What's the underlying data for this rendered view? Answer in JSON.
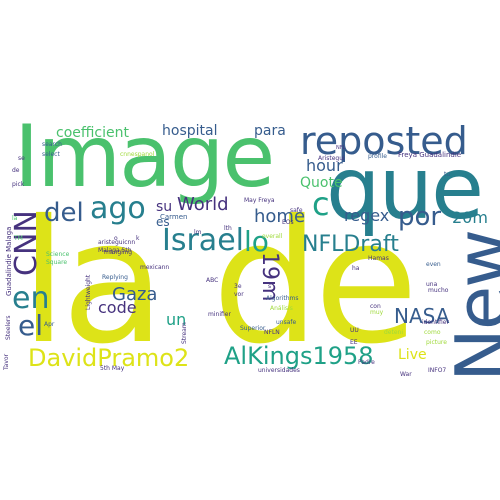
{
  "palette": {
    "yellow": "#dde318",
    "lime": "#9fda3a",
    "green": "#4ac16d",
    "teal": "#1fa187",
    "cyan": "#277f8e",
    "blue": "#365c8d",
    "indigo": "#46327e",
    "purple": "#440154"
  },
  "words": [
    {
      "id": "w-la",
      "text": "la"
    },
    {
      "id": "w-de",
      "text": "de"
    },
    {
      "id": "w-image",
      "text": "Image"
    },
    {
      "id": "w-que",
      "text": "que"
    },
    {
      "id": "w-new",
      "text": "New"
    },
    {
      "id": "w-reposted",
      "text": "reposted"
    },
    {
      "id": "w-cnn",
      "text": "CNN"
    },
    {
      "id": "w-en",
      "text": "en"
    },
    {
      "id": "w-el",
      "text": "el"
    },
    {
      "id": "w-del",
      "text": "del"
    },
    {
      "id": "w-ago",
      "text": "ago"
    },
    {
      "id": "w-israel",
      "text": "Israel"
    },
    {
      "id": "w-lo",
      "text": "lo"
    },
    {
      "id": "w-c",
      "text": "c"
    },
    {
      "id": "w-por",
      "text": "por"
    },
    {
      "id": "w-20m",
      "text": "20m"
    },
    {
      "id": "w-regex",
      "text": "regex"
    },
    {
      "id": "w-nfldraft",
      "text": "NFLDraft"
    },
    {
      "id": "w-19m",
      "text": "19m"
    },
    {
      "id": "w-world",
      "text": "World"
    },
    {
      "id": "w-home",
      "text": "home"
    },
    {
      "id": "w-hour",
      "text": "hour"
    },
    {
      "id": "w-quote",
      "text": "Quote"
    },
    {
      "id": "w-gaza",
      "text": "Gaza"
    },
    {
      "id": "w-nasa",
      "text": "NASA"
    },
    {
      "id": "w-code",
      "text": "code"
    },
    {
      "id": "w-un",
      "text": "un"
    },
    {
      "id": "w-davidpramo2",
      "text": "DavidPramo2"
    },
    {
      "id": "w-alkings1958",
      "text": "AlKings1958"
    },
    {
      "id": "w-live",
      "text": "Live"
    },
    {
      "id": "w-coefficient",
      "text": "coefficient"
    },
    {
      "id": "w-hospital",
      "text": "hospital"
    },
    {
      "id": "w-para",
      "text": "para"
    },
    {
      "id": "w-su",
      "text": "su"
    },
    {
      "id": "w-es",
      "text": "es"
    },
    {
      "id": "w-carmen",
      "text": "Carmen"
    },
    {
      "id": "w-guadalindie",
      "text": "Guadalindie Malaga"
    },
    {
      "id": "w-steelers",
      "text": "Steelers"
    },
    {
      "id": "w-search",
      "text": "search"
    },
    {
      "id": "w-select",
      "text": "select"
    },
    {
      "id": "w-se",
      "text": "se"
    },
    {
      "id": "w-freya",
      "text": "Freya Guadalindie"
    },
    {
      "id": "w-profile",
      "text": "profile"
    },
    {
      "id": "w-aristegui",
      "text": "Aristegui"
    },
    {
      "id": "w-nfl",
      "text": "NFL"
    },
    {
      "id": "w-tu",
      "text": "tu"
    },
    {
      "id": "w-algorithms",
      "text": "Algorithms"
    },
    {
      "id": "w-analisis",
      "text": "Análisis"
    },
    {
      "id": "w-unsafe",
      "text": "unsafe"
    },
    {
      "id": "w-identifier",
      "text": "identifier"
    },
    {
      "id": "w-minifier",
      "text": "minifier"
    },
    {
      "id": "w-superior",
      "text": "Superior"
    },
    {
      "id": "w-universidades",
      "text": "universidades"
    },
    {
      "id": "w-info7",
      "text": "INFO7"
    },
    {
      "id": "w-replying",
      "text": "Replying"
    },
    {
      "id": "w-mexicann",
      "text": "mexicann"
    },
    {
      "id": "w-mangling",
      "text": "mangling"
    },
    {
      "id": "w-aristeguicnn",
      "text": "aristeguicnn"
    },
    {
      "id": "w-malaga5th",
      "text": "Malaga 5th"
    },
    {
      "id": "w-5thmay",
      "text": "5th May"
    },
    {
      "id": "w-science",
      "text": "Science"
    },
    {
      "id": "w-square",
      "text": "Square"
    },
    {
      "id": "w-lightweight",
      "text": "Lightweight"
    },
    {
      "id": "w-stream",
      "text": "Stream"
    },
    {
      "id": "w-apr",
      "text": "Apr"
    },
    {
      "id": "w-mucho",
      "text": "mucho"
    },
    {
      "id": "w-con",
      "text": "con"
    },
    {
      "id": "w-even",
      "text": "even"
    },
    {
      "id": "w-hamas",
      "text": "Hamas"
    },
    {
      "id": "w-safe",
      "text": "safe"
    },
    {
      "id": "w-picture",
      "text": "picture"
    },
    {
      "id": "w-padre",
      "text": "Padre"
    },
    {
      "id": "w-war",
      "text": "War"
    },
    {
      "id": "w-una",
      "text": "una"
    },
    {
      "id": "w-pick",
      "text": "pick"
    },
    {
      "id": "w-nfln",
      "text": "NFLN"
    },
    {
      "id": "w-maypreya",
      "text": "May Freya"
    },
    {
      "id": "w-tavor",
      "text": "Tavor"
    },
    {
      "id": "w-cnnespanol",
      "text": "cnnespanol"
    },
    {
      "id": "w-deteni",
      "text": "deteni"
    },
    {
      "id": "w-overall",
      "text": "overall"
    },
    {
      "id": "w-muy",
      "text": "muy"
    },
    {
      "id": "w-lm",
      "text": "lm"
    },
    {
      "id": "w-como",
      "text": "como"
    },
    {
      "id": "w-ee",
      "text": "EE"
    },
    {
      "id": "w-uu",
      "text": "UU"
    },
    {
      "id": "w-de2",
      "text": "de"
    },
    {
      "id": "w-la2",
      "text": "la"
    },
    {
      "id": "w-k",
      "text": "k"
    },
    {
      "id": "w-lth",
      "text": "lth"
    },
    {
      "id": "w-eos",
      "text": "EOs"
    },
    {
      "id": "w-ha",
      "text": "ha"
    },
    {
      "id": "w-abc",
      "text": "ABC"
    },
    {
      "id": "w-o",
      "text": "o"
    },
    {
      "id": "w-3e",
      "text": "3e"
    },
    {
      "id": "w-vor",
      "text": "vor"
    },
    {
      "id": "w-s",
      "text": "s"
    },
    {
      "id": "w-tm",
      "text": "TM"
    }
  ]
}
